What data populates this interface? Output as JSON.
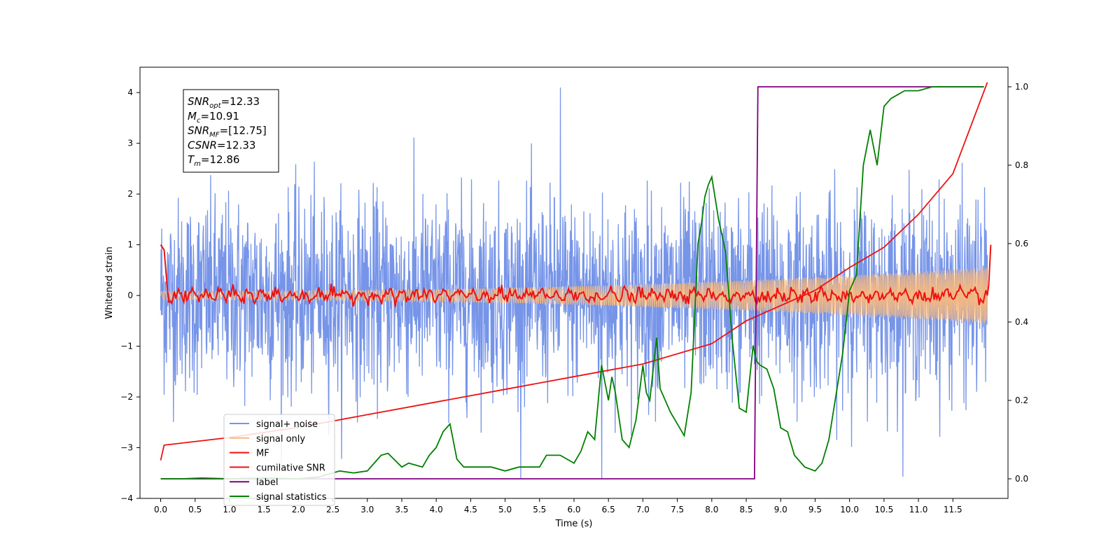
{
  "chart_data": {
    "type": "line",
    "xlabel": "Time (s)",
    "ylabel": "Whitened strain",
    "xlim": [
      -0.3,
      12.3
    ],
    "ylim": [
      -4,
      4.5
    ],
    "ylim_right": [
      -0.05,
      1.05
    ],
    "x_ticks": [
      "0.0",
      "0.5",
      "1.0",
      "1.5",
      "2.0",
      "2.5",
      "3.0",
      "3.5",
      "4.0",
      "4.5",
      "5.0",
      "5.5",
      "6.0",
      "6.5",
      "7.0",
      "7.5",
      "8.0",
      "8.5",
      "9.0",
      "9.5",
      "10.0",
      "10.5",
      "11.0",
      "11.5"
    ],
    "y_ticks_left": [
      "−4",
      "−3",
      "−2",
      "−1",
      "0",
      "1",
      "2",
      "3",
      "4"
    ],
    "y_ticks_right": [
      "0.0",
      "0.2",
      "0.4",
      "0.6",
      "0.8",
      "1.0"
    ],
    "grid": false,
    "legend_position": "lower-left",
    "annotation": {
      "lines": [
        {
          "name": "SNR",
          "sub": "opt",
          "value": "=12.33"
        },
        {
          "name": "M",
          "sub": "c",
          "value": "=10.91"
        },
        {
          "name": "SNR",
          "sub": "MF",
          "value": "=[12.75]"
        },
        {
          "name": "CSNR",
          "sub": "",
          "value": "=12.33"
        },
        {
          "name": "T",
          "sub": "m",
          "value": "=12.86"
        }
      ]
    },
    "series": [
      {
        "name": "signal+ noise",
        "axis": "left",
        "color": "#7694e8",
        "style": "noise",
        "x_range": [
          0,
          12
        ],
        "amplitude_std": 1.0,
        "extreme_values": [
          4.1,
          -3.6
        ]
      },
      {
        "name": "signal only",
        "axis": "left",
        "color": "#f5b880",
        "style": "chirp",
        "x_range": [
          0,
          12
        ],
        "amplitude_start": 0.08,
        "amplitude_end": 0.55
      },
      {
        "name": "MF",
        "axis": "left",
        "color": "#ee1111",
        "style": "mf",
        "points": [
          [
            0.0,
            1.0
          ],
          [
            0.05,
            0.9
          ],
          [
            0.1,
            0.1
          ],
          [
            12.0,
            0.0
          ],
          [
            12.02,
            0.2
          ],
          [
            12.05,
            1.0
          ]
        ]
      },
      {
        "name": "cumilative SNR",
        "axis": "left",
        "color": "#ee1111",
        "x": [
          0,
          0.05,
          1,
          2,
          3,
          4,
          5,
          6,
          7,
          8,
          8.5,
          9,
          9.5,
          10,
          10.5,
          11,
          11.5,
          12
        ],
        "y": [
          -3.25,
          -2.95,
          -2.8,
          -2.6,
          -2.35,
          -2.1,
          -1.85,
          -1.6,
          -1.35,
          -0.95,
          -0.5,
          -0.2,
          0.1,
          0.55,
          0.95,
          1.6,
          2.4,
          4.2
        ]
      },
      {
        "name": "label",
        "axis": "right",
        "color": "#800080",
        "x": [
          0,
          8.62,
          8.67,
          11.95
        ],
        "y": [
          0,
          0,
          1,
          1
        ]
      },
      {
        "name": "signal statistics",
        "axis": "right",
        "color": "#008000",
        "x": [
          0,
          0.3,
          0.6,
          1,
          1.5,
          2,
          2.3,
          2.5,
          2.6,
          2.8,
          3,
          3.1,
          3.2,
          3.3,
          3.5,
          3.6,
          3.8,
          3.9,
          4,
          4.1,
          4.2,
          4.3,
          4.4,
          4.6,
          4.8,
          5,
          5.2,
          5.5,
          5.6,
          5.8,
          6,
          6.1,
          6.2,
          6.3,
          6.4,
          6.5,
          6.55,
          6.6,
          6.7,
          6.8,
          6.9,
          7,
          7.05,
          7.1,
          7.2,
          7.25,
          7.4,
          7.5,
          7.6,
          7.7,
          7.8,
          7.85,
          7.9,
          7.95,
          8.0,
          8.1,
          8.2,
          8.3,
          8.4,
          8.5,
          8.6,
          8.65,
          8.7,
          8.8,
          8.9,
          9.0,
          9.1,
          9.2,
          9.3,
          9.35,
          9.5,
          9.6,
          9.7,
          9.8,
          9.9,
          10.0,
          10.1,
          10.2,
          10.3,
          10.4,
          10.5,
          10.6,
          10.7,
          10.8,
          10.9,
          11,
          11.2,
          11.5,
          11.8,
          11.95
        ],
        "y": [
          0,
          0,
          0.002,
          0,
          0.002,
          0,
          0.005,
          0.015,
          0.02,
          0.015,
          0.02,
          0.04,
          0.06,
          0.065,
          0.03,
          0.04,
          0.03,
          0.06,
          0.08,
          0.12,
          0.14,
          0.05,
          0.03,
          0.03,
          0.03,
          0.02,
          0.03,
          0.03,
          0.06,
          0.06,
          0.04,
          0.07,
          0.12,
          0.1,
          0.29,
          0.2,
          0.26,
          0.22,
          0.1,
          0.08,
          0.15,
          0.29,
          0.22,
          0.2,
          0.36,
          0.23,
          0.17,
          0.14,
          0.11,
          0.22,
          0.6,
          0.65,
          0.72,
          0.75,
          0.77,
          0.66,
          0.58,
          0.35,
          0.18,
          0.17,
          0.34,
          0.3,
          0.29,
          0.28,
          0.23,
          0.13,
          0.12,
          0.06,
          0.04,
          0.03,
          0.02,
          0.04,
          0.1,
          0.21,
          0.32,
          0.48,
          0.52,
          0.8,
          0.89,
          0.8,
          0.95,
          0.97,
          0.98,
          0.99,
          0.99,
          0.99,
          1.0,
          1.0,
          1.0,
          1.0
        ]
      }
    ]
  }
}
